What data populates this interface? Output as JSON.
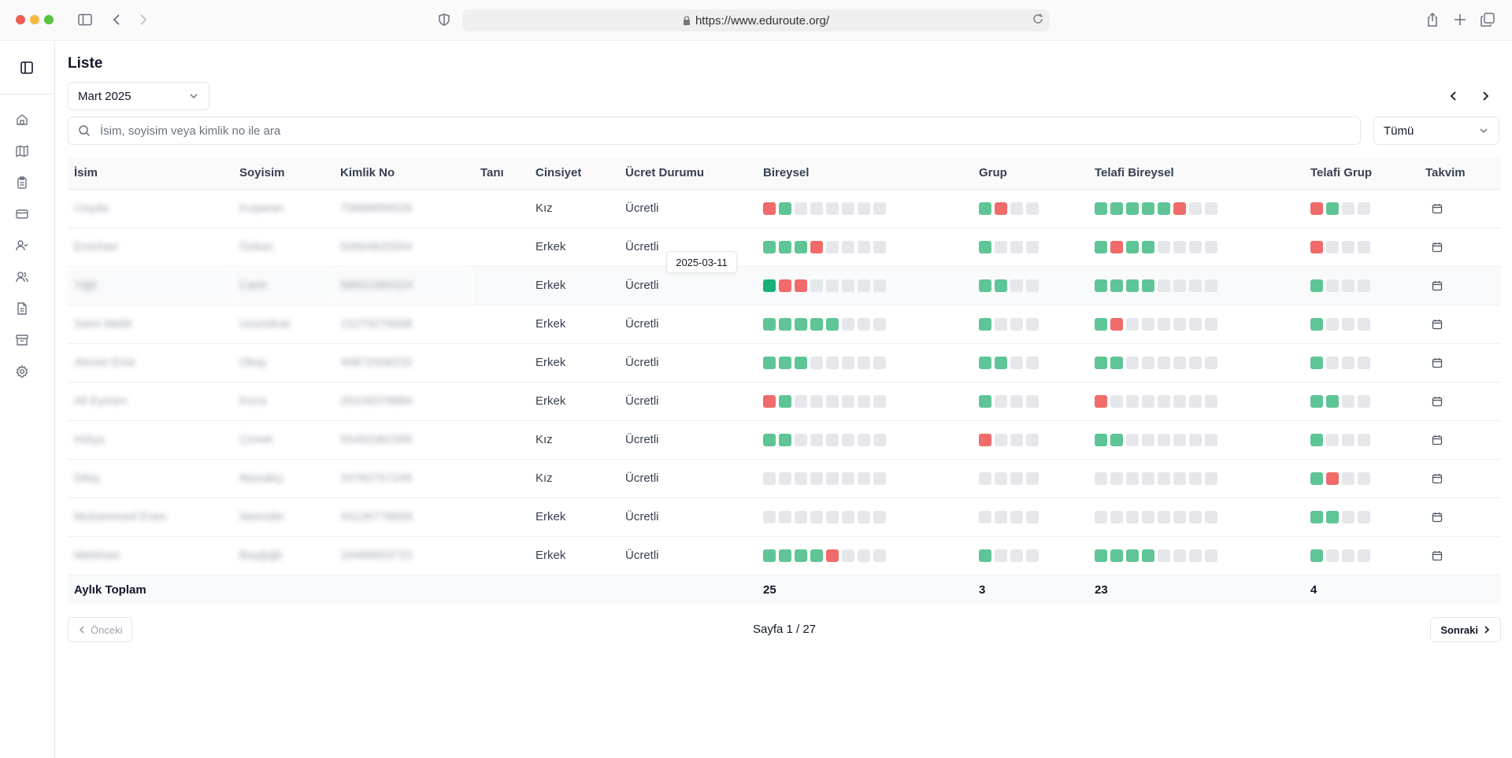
{
  "browser": {
    "url": "https://www.eduroute.org/",
    "traffic_colors": [
      "#ee5f57",
      "#f5b93f",
      "#57c33e"
    ]
  },
  "sidebar": {
    "icons": [
      "sidebar-toggle-icon",
      "home-icon",
      "map-icon",
      "clipboard-icon",
      "credit-card-icon",
      "user-check-icon",
      "users-icon",
      "file-text-icon",
      "archive-icon",
      "settings-icon"
    ]
  },
  "page": {
    "title": "Liste",
    "month_select": "Mart 2025",
    "search_placeholder": "İsim, soyisim veya kimlik no ile ara",
    "filter_select": "Tümü"
  },
  "table": {
    "headers": {
      "name": "İsim",
      "surname": "Soyisim",
      "id": "Kimlik No",
      "diagnosis": "Tanı",
      "gender": "Cinsiyet",
      "fee": "Ücret Durumu",
      "individual": "Bireysel",
      "group": "Grup",
      "makeup_individual": "Telafi Bireysel",
      "makeup_group": "Telafi Grup",
      "calendar": "Takvim"
    },
    "rows": [
      {
        "name": "Ceyda",
        "surname": "Kuşaran",
        "id": "75868659535",
        "diagnosis": "",
        "gender": "Kız",
        "fee": "Ücretli",
        "individual": "rg------",
        "group": "gr--",
        "makeup_individual": "gggggr--",
        "makeup_group": "rg--"
      },
      {
        "name": "Emirhan",
        "surname": "Özkan",
        "id": "50664825554",
        "diagnosis": "",
        "gender": "Erkek",
        "fee": "Ücretli",
        "individual": "gggr----",
        "group": "g---",
        "makeup_individual": "grgg----",
        "makeup_group": "r---"
      },
      {
        "name": "Yiğit",
        "surname": "Canlı",
        "id": "58651589324",
        "diagnosis": "",
        "gender": "Erkek",
        "fee": "Ücretli",
        "individual": "drr-----",
        "group": "gg--",
        "makeup_individual": "gggg----",
        "makeup_group": "g---"
      },
      {
        "name": "Sami Melih",
        "surname": "Uzundnar",
        "id": "15279275008",
        "diagnosis": "",
        "gender": "Erkek",
        "fee": "Ücretli",
        "individual": "ggggg---",
        "group": "g---",
        "makeup_individual": "gr------",
        "makeup_group": "g---"
      },
      {
        "name": "Ahmet Emir",
        "surname": "Okay",
        "id": "40872558232",
        "diagnosis": "",
        "gender": "Erkek",
        "fee": "Ücretli",
        "individual": "ggg-----",
        "group": "gg--",
        "makeup_individual": "gg------",
        "makeup_group": "g---"
      },
      {
        "name": "Ali Eymen",
        "surname": "Koca",
        "id": "29109378884",
        "diagnosis": "",
        "gender": "Erkek",
        "fee": "Ücretli",
        "individual": "rg------",
        "group": "g---",
        "makeup_individual": "r-------",
        "makeup_group": "gg--"
      },
      {
        "name": "Hülya",
        "surname": "Çimek",
        "id": "55492382395",
        "diagnosis": "",
        "gender": "Kız",
        "fee": "Ücretli",
        "individual": "gg------",
        "group": "r---",
        "makeup_individual": "gg------",
        "makeup_group": "g---"
      },
      {
        "name": "Dilay",
        "surname": "Manakçı",
        "id": "34782757245",
        "diagnosis": "",
        "gender": "Kız",
        "fee": "Ücretli",
        "individual": "--------",
        "group": "----",
        "makeup_individual": "--------",
        "makeup_group": "gr--"
      },
      {
        "name": "Muhammed Enes",
        "surname": "İskender",
        "id": "34126778659",
        "diagnosis": "",
        "gender": "Erkek",
        "fee": "Ücretli",
        "individual": "--------",
        "group": "----",
        "makeup_individual": "--------",
        "makeup_group": "gg--"
      },
      {
        "name": "Metehan",
        "surname": "Bayğığit",
        "id": "16466653723",
        "diagnosis": "",
        "gender": "Erkek",
        "fee": "Ücretli",
        "individual": "ggggr---",
        "group": "g---",
        "makeup_individual": "gggg----",
        "makeup_group": "g---"
      }
    ],
    "highlight_row": 2,
    "footer": {
      "label": "Aylık Toplam",
      "individual": "25",
      "group": "3",
      "makeup_individual": "23",
      "makeup_group": "4"
    },
    "status_colors": {
      "attended": "#5fc596",
      "absent": "#f16b6b",
      "active": "#19b07a",
      "empty": "#e5e7eb"
    }
  },
  "tooltip": {
    "text": "2025-03-11"
  },
  "pagination": {
    "prev": "Önceki",
    "info": "Sayfa 1 / 27",
    "next": "Sonraki"
  }
}
